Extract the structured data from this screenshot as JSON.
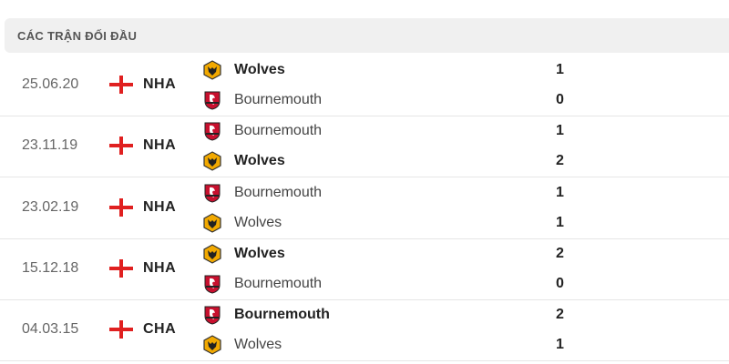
{
  "header": {
    "title": "CÁC TRẬN ĐỐI ĐẦU"
  },
  "colors": {
    "wolves": "#f2a900",
    "bournemouth": "#c8102e",
    "england_cross": "#e02020"
  },
  "matches": [
    {
      "date": "25.06.20",
      "league": "NHA",
      "teams": [
        {
          "name": "Wolves",
          "logo": "wolves",
          "score": "1",
          "bold": true
        },
        {
          "name": "Bournemouth",
          "logo": "bournemouth",
          "score": "0",
          "bold": false
        }
      ]
    },
    {
      "date": "23.11.19",
      "league": "NHA",
      "teams": [
        {
          "name": "Bournemouth",
          "logo": "bournemouth",
          "score": "1",
          "bold": false
        },
        {
          "name": "Wolves",
          "logo": "wolves",
          "score": "2",
          "bold": true
        }
      ]
    },
    {
      "date": "23.02.19",
      "league": "NHA",
      "teams": [
        {
          "name": "Bournemouth",
          "logo": "bournemouth",
          "score": "1",
          "bold": false
        },
        {
          "name": "Wolves",
          "logo": "wolves",
          "score": "1",
          "bold": false
        }
      ]
    },
    {
      "date": "15.12.18",
      "league": "NHA",
      "teams": [
        {
          "name": "Wolves",
          "logo": "wolves",
          "score": "2",
          "bold": true
        },
        {
          "name": "Bournemouth",
          "logo": "bournemouth",
          "score": "0",
          "bold": false
        }
      ]
    },
    {
      "date": "04.03.15",
      "league": "CHA",
      "teams": [
        {
          "name": "Bournemouth",
          "logo": "bournemouth",
          "score": "2",
          "bold": true
        },
        {
          "name": "Wolves",
          "logo": "wolves",
          "score": "1",
          "bold": false
        }
      ]
    }
  ]
}
